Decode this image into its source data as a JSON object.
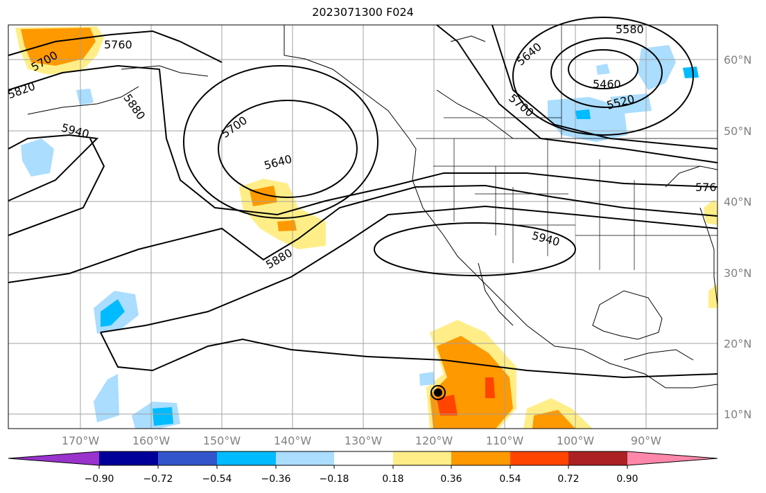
{
  "title": "2023071300 F024",
  "axes": {
    "lon_ticks": [
      "170°W",
      "160°W",
      "150°W",
      "140°W",
      "130°W",
      "120°W",
      "110°W",
      "100°W",
      "90°W"
    ],
    "lat_ticks": [
      "60°N",
      "50°N",
      "40°N",
      "30°N",
      "20°N",
      "10°N"
    ],
    "label_color": "#808080"
  },
  "contour_labels": [
    "5700",
    "5760",
    "5820",
    "5880",
    "5940",
    "5700",
    "5640",
    "5880",
    "5940",
    "5640",
    "5580",
    "5700",
    "5460",
    "5520",
    "576"
  ],
  "colorbar": {
    "colors": [
      "#9933cc",
      "#000099",
      "#3355cc",
      "#00bbff",
      "#aaddff",
      "#ffffff",
      "#ffee88",
      "#ff9900",
      "#ff4400",
      "#aa2222",
      "#ff88aa"
    ],
    "tick_labels": [
      "−0.90",
      "−0.72",
      "−0.54",
      "−0.36",
      "−0.18",
      "0.18",
      "0.36",
      "0.54",
      "0.72",
      "0.90"
    ]
  }
}
